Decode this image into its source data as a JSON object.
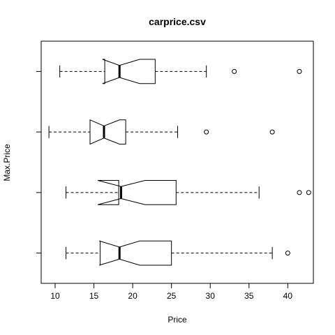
{
  "chart_data": {
    "type": "boxplot",
    "title": "carprice.csv",
    "xlabel": "Price",
    "ylabel": "Max.Price",
    "orientation": "horizontal",
    "notched": true,
    "xlim": [
      8.2,
      43.3
    ],
    "xticks": [
      10,
      15,
      20,
      25,
      30,
      35,
      40
    ],
    "grid": false,
    "legend": "none",
    "groups": [
      {
        "min": 11.4,
        "q1": 15.8,
        "median": 18.3,
        "q3": 25.0,
        "max": 38.0,
        "notch_low": 15.7,
        "notch_high": 20.9,
        "outliers": [
          40.0
        ]
      },
      {
        "min": 11.4,
        "q1": 18.2,
        "median": 18.5,
        "q3": 25.6,
        "max": 36.3,
        "notch_low": 15.5,
        "notch_high": 21.6,
        "outliers": [
          41.5,
          42.7
        ]
      },
      {
        "min": 9.2,
        "q1": 14.5,
        "median": 16.3,
        "q3": 19.1,
        "max": 25.8,
        "notch_low": 14.5,
        "notch_high": 18.3,
        "outliers": [
          29.5,
          38.0
        ]
      },
      {
        "min": 10.6,
        "q1": 16.4,
        "median": 18.3,
        "q3": 22.9,
        "max": 29.5,
        "notch_low": 16.1,
        "notch_high": 20.9,
        "outliers": [
          33.1,
          41.5
        ]
      }
    ]
  }
}
